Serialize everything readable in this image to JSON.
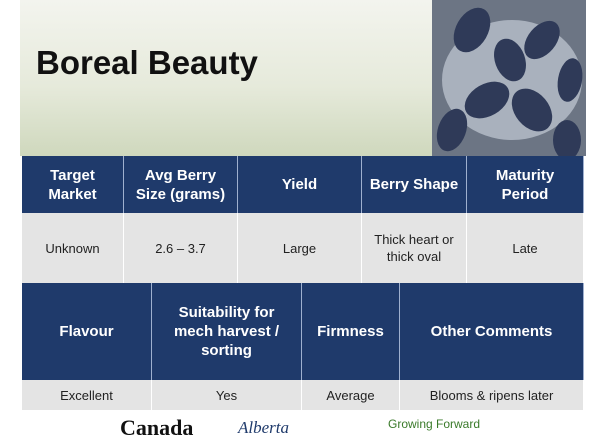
{
  "title": "Boreal Beauty",
  "table1": {
    "headers": [
      "Target Market",
      "Avg Berry Size (grams)",
      "Yield",
      "Berry Shape",
      "Maturity Period"
    ],
    "row": [
      "Unknown",
      "2.6 – 3.7",
      "Large",
      "Thick heart or thick oval",
      "Late"
    ]
  },
  "table2": {
    "headers": [
      "Flavour",
      "Suitability for mech harvest / sorting",
      "Firmness",
      "Other Comments"
    ],
    "row": [
      "Excellent",
      "Yes",
      "Average",
      "Blooms & ripens later"
    ]
  },
  "footer": [
    "Canada",
    "Alberta",
    "Growing Forward"
  ]
}
